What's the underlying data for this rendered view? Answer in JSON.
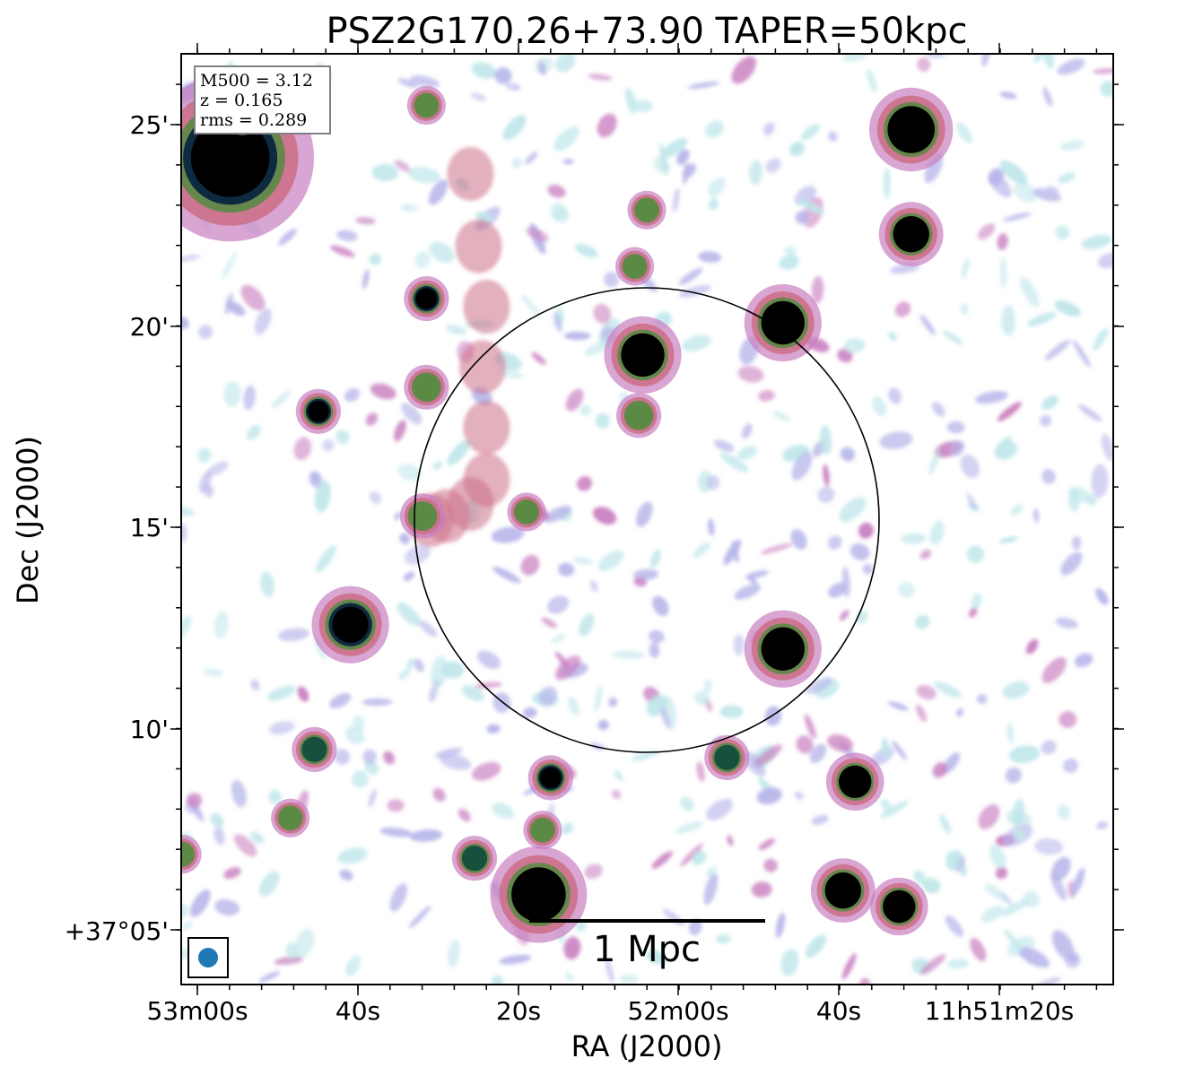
{
  "chart_data": {
    "type": "heatmap",
    "title": "PSZ2G170.26+73.90 TAPER=50kpc",
    "xlabel": "RA (J2000)",
    "ylabel": "Dec (J2000)",
    "x_ticks": [
      "53m00s",
      "40s",
      "20s",
      "52m00s",
      "40s",
      "11h51m20s"
    ],
    "y_ticks": [
      "25'",
      "20'",
      "15'",
      "10'",
      "+37°05'"
    ],
    "info_box": [
      "M500 = 3.12",
      "z = 0.165",
      "rms = 0.289"
    ],
    "scalebar_label": "1 Mpc",
    "colormap": [
      "#ffffff",
      "#bfe6ea",
      "#b7b6ea",
      "#c97fc0",
      "#cc6f86",
      "#5b8a45",
      "#17503c",
      "#0d2a40",
      "#000000"
    ],
    "circle": {
      "ra_sec_offset": 0,
      "dec_arcmin": 15.2,
      "radius_arcmin": 5.8
    },
    "bright_sources": [
      {
        "ra_offset_s": 52.0,
        "dec_arcmin": 24.2,
        "level": 0.9,
        "size": 1.3
      },
      {
        "ra_offset_s": 50.5,
        "dec_arcmin": 25.4,
        "level": 0.7,
        "size": 0.4
      },
      {
        "ra_offset_s": 0.5,
        "dec_arcmin": 19.3,
        "level": 1.0,
        "size": 0.6
      },
      {
        "ra_offset_s": -17.0,
        "dec_arcmin": 20.1,
        "level": 1.0,
        "size": 0.6
      },
      {
        "ra_offset_s": -17.0,
        "dec_arcmin": 12.0,
        "level": 1.0,
        "size": 0.6
      },
      {
        "ra_offset_s": -33.0,
        "dec_arcmin": 24.9,
        "level": 1.0,
        "size": 0.65
      },
      {
        "ra_offset_s": -33.0,
        "dec_arcmin": 22.3,
        "level": 1.0,
        "size": 0.5
      },
      {
        "ra_offset_s": 27.5,
        "dec_arcmin": 20.7,
        "level": 0.9,
        "size": 0.35
      },
      {
        "ra_offset_s": 41.0,
        "dec_arcmin": 17.9,
        "level": 0.9,
        "size": 0.35
      },
      {
        "ra_offset_s": 37.0,
        "dec_arcmin": 12.6,
        "level": 0.9,
        "size": 0.6
      },
      {
        "ra_offset_s": 41.5,
        "dec_arcmin": 9.5,
        "level": 0.7,
        "size": 0.35
      },
      {
        "ra_offset_s": 1.0,
        "dec_arcmin": 17.8,
        "level": 0.65,
        "size": 0.35
      },
      {
        "ra_offset_s": 1.5,
        "dec_arcmin": 21.5,
        "level": 0.55,
        "size": 0.3
      },
      {
        "ra_offset_s": 0.0,
        "dec_arcmin": 22.9,
        "level": 0.55,
        "size": 0.3
      },
      {
        "ra_offset_s": 27.5,
        "dec_arcmin": 25.5,
        "level": 0.55,
        "size": 0.3
      },
      {
        "ra_offset_s": 12.0,
        "dec_arcmin": 8.8,
        "level": 0.85,
        "size": 0.35
      },
      {
        "ra_offset_s": 13.0,
        "dec_arcmin": 7.5,
        "level": 0.5,
        "size": 0.3
      },
      {
        "ra_offset_s": 21.5,
        "dec_arcmin": 6.8,
        "level": 0.75,
        "size": 0.35
      },
      {
        "ra_offset_s": 13.5,
        "dec_arcmin": 5.9,
        "level": 1.0,
        "size": 0.75
      },
      {
        "ra_offset_s": -10.0,
        "dec_arcmin": 9.3,
        "level": 0.7,
        "size": 0.35
      },
      {
        "ra_offset_s": -26.0,
        "dec_arcmin": 8.7,
        "level": 1.0,
        "size": 0.45
      },
      {
        "ra_offset_s": -24.5,
        "dec_arcmin": 6.0,
        "level": 1.0,
        "size": 0.5
      },
      {
        "ra_offset_s": -31.5,
        "dec_arcmin": 5.6,
        "level": 1.0,
        "size": 0.45
      },
      {
        "ra_offset_s": 58.0,
        "dec_arcmin": 6.9,
        "level": 0.6,
        "size": 0.3
      },
      {
        "ra_offset_s": 28.0,
        "dec_arcmin": 15.3,
        "level": 0.6,
        "size": 0.35
      },
      {
        "ra_offset_s": 15.0,
        "dec_arcmin": 15.4,
        "level": 0.55,
        "size": 0.3
      },
      {
        "ra_offset_s": 27.5,
        "dec_arcmin": 18.5,
        "level": 0.55,
        "size": 0.35
      },
      {
        "ra_offset_s": 44.5,
        "dec_arcmin": 7.8,
        "level": 0.5,
        "size": 0.3
      }
    ]
  }
}
